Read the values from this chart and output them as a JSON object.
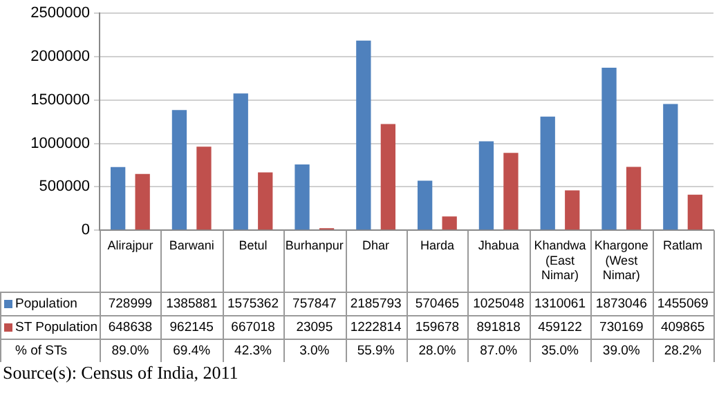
{
  "chart_data": {
    "type": "bar",
    "categories": [
      "Alirajpur",
      "Barwani",
      "Betul",
      "Burhanpur",
      "Dhar",
      "Harda",
      "Jhabua",
      "Khandwa (East Nimar)",
      "Khargone (West Nimar)",
      "Ratlam"
    ],
    "series": [
      {
        "name": "Population",
        "color": "#4f81bd",
        "values": [
          728999,
          1385881,
          1575362,
          757847,
          2185793,
          570465,
          1025048,
          1310061,
          1873046,
          1455069
        ]
      },
      {
        "name": "ST Population",
        "color": "#c0504d",
        "values": [
          648638,
          962145,
          667018,
          23095,
          1222814,
          159678,
          891818,
          459122,
          730169,
          409865
        ]
      }
    ],
    "ylim": [
      0,
      2500000
    ],
    "yticks": [
      0,
      500000,
      1000000,
      1500000,
      2000000,
      2500000
    ],
    "grid": "y",
    "legend": "bottom left",
    "data_labels": true,
    "annotations": [
      "% of STs",
      "89.0%",
      "69.4%",
      "42.3%",
      "3.0%",
      "55.9%",
      "28.0%",
      "87.0%",
      "35.0%",
      "39.0%",
      "28.2%",
      "Source(s): Census of India, 2011"
    ]
  }
}
